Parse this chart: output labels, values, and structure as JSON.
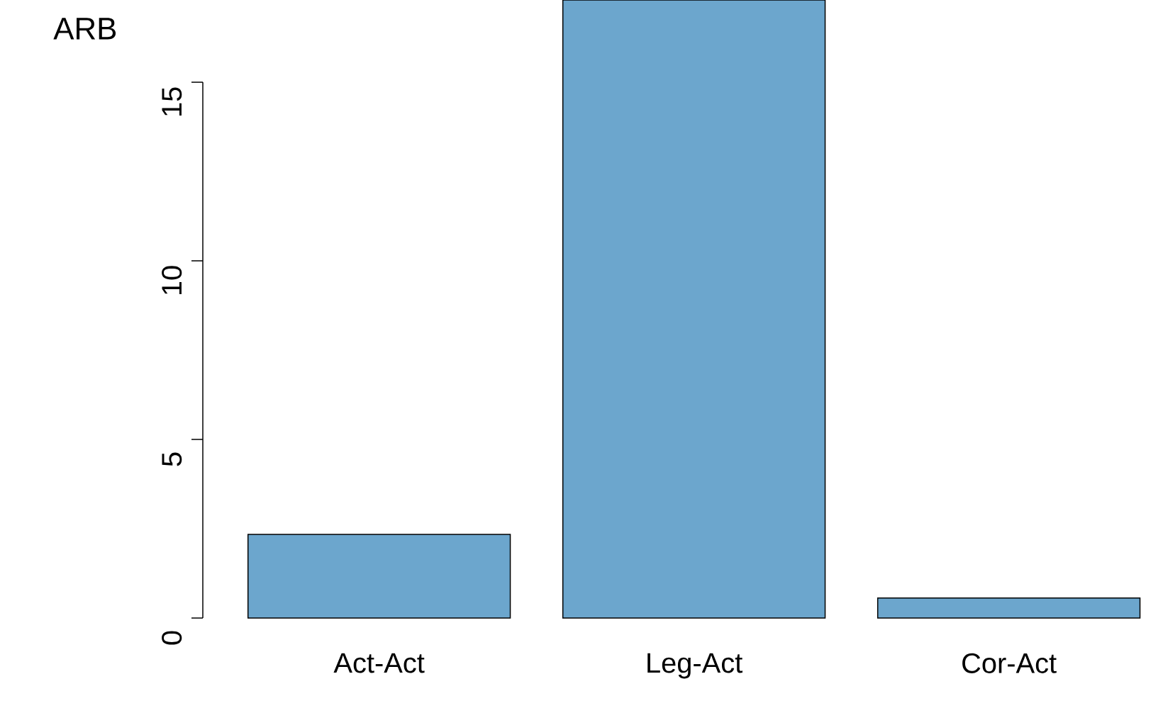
{
  "chart_data": {
    "type": "bar",
    "title": "ARB",
    "categories": [
      "Act-Act",
      "Leg-Act",
      "Cor-Act"
    ],
    "values": [
      2.34,
      17.3,
      0.56
    ],
    "color": "#6ca6cd",
    "ylim": [
      0,
      17.3
    ],
    "yticks": [
      0,
      5,
      10,
      15
    ]
  }
}
